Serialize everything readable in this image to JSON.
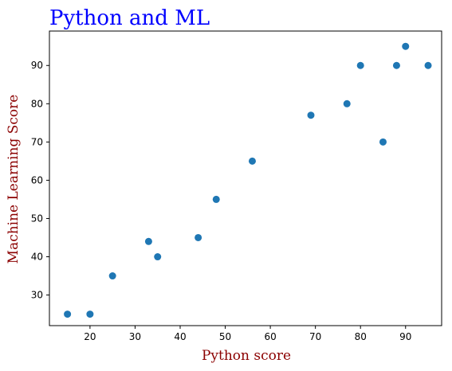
{
  "chart_data": {
    "type": "scatter",
    "title": "Python and ML",
    "xlabel": "Python score",
    "ylabel": "Machine Learning Score",
    "title_color": "#0000ff",
    "label_color": "#8b0000",
    "point_color": "#1f77b4",
    "xlim": [
      11,
      98
    ],
    "ylim": [
      22,
      99
    ],
    "xticks": [
      10,
      20,
      30,
      40,
      50,
      60,
      70,
      80,
      90
    ],
    "xtick_labels": [
      "",
      "20",
      "30",
      "40",
      "50",
      "60",
      "70",
      "80",
      "90"
    ],
    "yticks": [
      30,
      40,
      50,
      60,
      70,
      80,
      90
    ],
    "ytick_labels": [
      "30",
      "40",
      "50",
      "60",
      "70",
      "80",
      "90"
    ],
    "grid": false,
    "points": [
      {
        "x": 15,
        "y": 25
      },
      {
        "x": 20,
        "y": 25
      },
      {
        "x": 25,
        "y": 35
      },
      {
        "x": 33,
        "y": 44
      },
      {
        "x": 35,
        "y": 40
      },
      {
        "x": 44,
        "y": 45
      },
      {
        "x": 48,
        "y": 55
      },
      {
        "x": 56,
        "y": 65
      },
      {
        "x": 69,
        "y": 77
      },
      {
        "x": 77,
        "y": 80
      },
      {
        "x": 80,
        "y": 90
      },
      {
        "x": 85,
        "y": 70
      },
      {
        "x": 88,
        "y": 90
      },
      {
        "x": 90,
        "y": 95
      },
      {
        "x": 95,
        "y": 90
      }
    ]
  }
}
